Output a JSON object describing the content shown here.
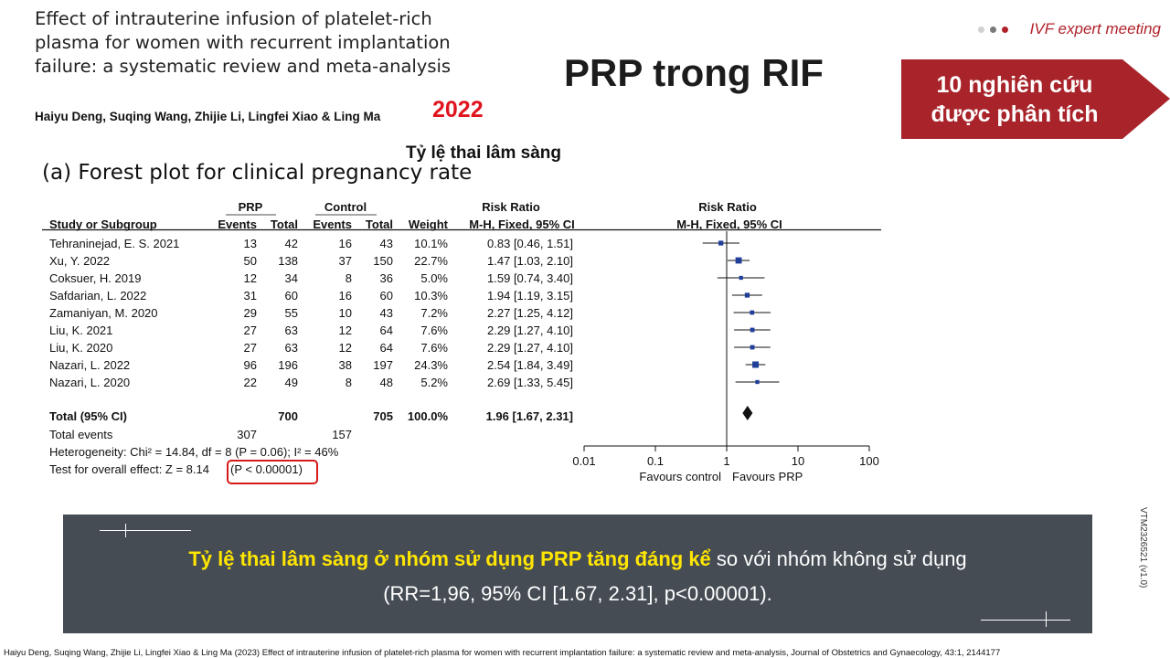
{
  "paper": {
    "title_lines": [
      "Effect of intrauterine infusion of platelet-rich",
      "plasma for women with recurrent implantation",
      "failure: a systematic review and meta-analysis"
    ],
    "authors": "Haiyu Deng, Suqing Wang, Zhijie Li, Lingfei Xiao & Ling Ma",
    "year": "2022"
  },
  "header": {
    "slide_title": "PRP trong RIF",
    "brand": "IVF expert meeting",
    "brand_dot_colors": [
      "#d0d0d0",
      "#7a7a7a",
      "#b0222a"
    ],
    "badge_lines": [
      "10 nghiên cứu",
      "được phân tích"
    ],
    "badge_color": "#a8242a"
  },
  "forest": {
    "subtitle": "Tỷ lệ thai lâm sàng",
    "caption": "(a) Forest plot for clinical pregnancy rate"
  },
  "chart_data": {
    "type": "forest",
    "group_headers": {
      "prp": "PRP",
      "control": "Control",
      "rr_text": "Risk Ratio",
      "rr_plot": "Risk Ratio"
    },
    "column_headers": {
      "study": "Study or Subgroup",
      "prp_events": "Events",
      "prp_total": "Total",
      "ctrl_events": "Events",
      "ctrl_total": "Total",
      "weight": "Weight",
      "rr_text_method": "M-H, Fixed, 95% CI",
      "rr_plot_method": "M-H, Fixed, 95% CI"
    },
    "studies": [
      {
        "study": "Tehraninejad, E. S. 2021",
        "prp_events": 13,
        "prp_total": 42,
        "ctrl_events": 16,
        "ctrl_total": 43,
        "weight": "10.1%",
        "rr": 0.83,
        "lo": 0.46,
        "hi": 1.51,
        "ci_text": "0.83 [0.46, 1.51]"
      },
      {
        "study": "Xu, Y. 2022",
        "prp_events": 50,
        "prp_total": 138,
        "ctrl_events": 37,
        "ctrl_total": 150,
        "weight": "22.7%",
        "rr": 1.47,
        "lo": 1.03,
        "hi": 2.1,
        "ci_text": "1.47 [1.03, 2.10]"
      },
      {
        "study": "Coksuer, H. 2019",
        "prp_events": 12,
        "prp_total": 34,
        "ctrl_events": 8,
        "ctrl_total": 36,
        "weight": "5.0%",
        "rr": 1.59,
        "lo": 0.74,
        "hi": 3.4,
        "ci_text": "1.59 [0.74, 3.40]"
      },
      {
        "study": "Safdarian, L. 2022",
        "prp_events": 31,
        "prp_total": 60,
        "ctrl_events": 16,
        "ctrl_total": 60,
        "weight": "10.3%",
        "rr": 1.94,
        "lo": 1.19,
        "hi": 3.15,
        "ci_text": "1.94 [1.19, 3.15]"
      },
      {
        "study": "Zamaniyan, M. 2020",
        "prp_events": 29,
        "prp_total": 55,
        "ctrl_events": 10,
        "ctrl_total": 43,
        "weight": "7.2%",
        "rr": 2.27,
        "lo": 1.25,
        "hi": 4.12,
        "ci_text": "2.27 [1.25, 4.12]"
      },
      {
        "study": "Liu, K. 2021",
        "prp_events": 27,
        "prp_total": 63,
        "ctrl_events": 12,
        "ctrl_total": 64,
        "weight": "7.6%",
        "rr": 2.29,
        "lo": 1.27,
        "hi": 4.1,
        "ci_text": "2.29 [1.27, 4.10]"
      },
      {
        "study": "Liu, K. 2020",
        "prp_events": 27,
        "prp_total": 63,
        "ctrl_events": 12,
        "ctrl_total": 64,
        "weight": "7.6%",
        "rr": 2.29,
        "lo": 1.27,
        "hi": 4.1,
        "ci_text": "2.29 [1.27, 4.10]"
      },
      {
        "study": "Nazari, L. 2022",
        "prp_events": 96,
        "prp_total": 196,
        "ctrl_events": 38,
        "ctrl_total": 197,
        "weight": "24.3%",
        "rr": 2.54,
        "lo": 1.84,
        "hi": 3.49,
        "ci_text": "2.54 [1.84, 3.49]"
      },
      {
        "study": "Nazari, L. 2020",
        "prp_events": 22,
        "prp_total": 49,
        "ctrl_events": 8,
        "ctrl_total": 48,
        "weight": "5.2%",
        "rr": 2.69,
        "lo": 1.33,
        "hi": 5.45,
        "ci_text": "2.69 [1.33, 5.45]"
      }
    ],
    "total": {
      "label": "Total (95% CI)",
      "prp_total": 700,
      "ctrl_total": 705,
      "weight": "100.0%",
      "rr": 1.96,
      "lo": 1.67,
      "hi": 2.31,
      "ci_text": "1.96 [1.67, 2.31]"
    },
    "total_events": {
      "label": "Total events",
      "prp": 307,
      "control": 157
    },
    "heterogeneity": "Heterogeneity: Chi² = 14.84, df = 8 (P = 0.06); I² = 46%",
    "overall_effect": {
      "prefix": "Test for overall effect: Z = 8.14",
      "p": "(P < 0.00001)"
    },
    "axis": {
      "scale": "log",
      "range": [
        0.01,
        100
      ],
      "ticks": [
        0.01,
        0.1,
        1,
        10,
        100
      ],
      "tick_labels": [
        "0.01",
        "0.1",
        "1",
        "10",
        "100"
      ],
      "favours_left": "Favours control",
      "favours_right": "Favours PRP"
    },
    "marker_color": "#1f3f9a"
  },
  "conclusion": {
    "highlight": "Tỷ lệ thai lâm sàng ở nhóm sử dụng PRP tăng đáng kể",
    "rest": " so với nhóm không sử dụng (RR=1,96, 95% CI [1.67, 2.31], p<0.00001).",
    "highlight_color": "#ffe600"
  },
  "footer": {
    "vertical_code": "VTM2326521 (v1.0)",
    "reference": "Haiyu Deng, Suqing Wang, Zhijie Li, Lingfei Xiao & Ling Ma (2023) Effect of intrauterine infusion of platelet-rich plasma for women with recurrent implantation failure: a systematic review and meta-analysis, Journal of Obstetrics and Gynaecology, 43:1, 2144177"
  }
}
